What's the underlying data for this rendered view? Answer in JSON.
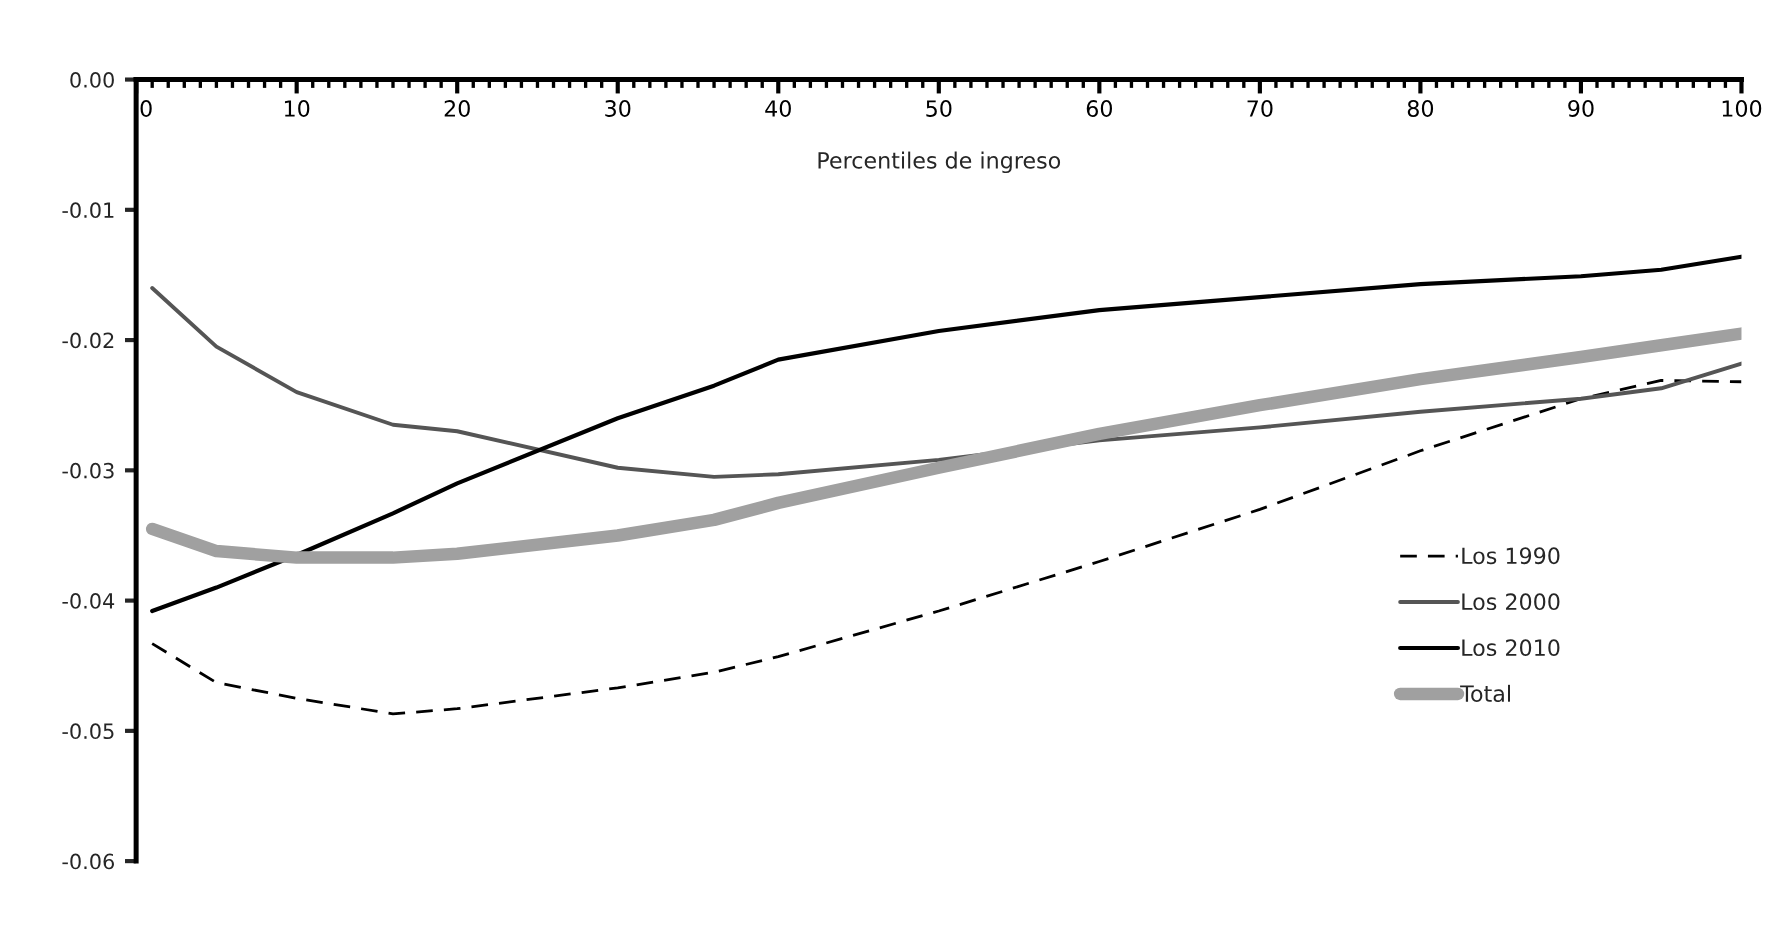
{
  "chart_data": {
    "type": "line",
    "xlabel": "Percentiles de ingreso",
    "xlim": [
      0,
      100
    ],
    "xticks": [
      0,
      10,
      20,
      30,
      40,
      50,
      60,
      70,
      80,
      90,
      100
    ],
    "ylim": [
      -0.06,
      0
    ],
    "yticks": [
      {
        "value": -0.06,
        "label": "-0.06"
      },
      {
        "value": -0.05,
        "label": "-0.05"
      },
      {
        "value": -0.04,
        "label": "-0.04"
      },
      {
        "value": -0.03,
        "label": "-0.03"
      },
      {
        "value": -0.02,
        "label": "-0.02"
      },
      {
        "value": -0.01,
        "label": "-0.01"
      },
      {
        "value": 0,
        "label": "0.00"
      }
    ],
    "x": [
      1,
      5,
      10,
      16,
      20,
      30,
      36,
      40,
      50,
      60,
      70,
      80,
      90,
      95,
      100
    ],
    "legend": "right",
    "grid": false,
    "marker": "none",
    "series": [
      {
        "name": "Los 1990",
        "color": "#000000",
        "line_style": "dashed",
        "values": [
          -0.0433,
          -0.0463,
          -0.0475,
          -0.0487,
          -0.0483,
          -0.0467,
          -0.0455,
          -0.0443,
          -0.0408,
          -0.037,
          -0.033,
          -0.0285,
          -0.0245,
          -0.0231,
          -0.0232
        ]
      },
      {
        "name": "Los 2000",
        "color": "#555555",
        "line_style": "solid",
        "values": [
          -0.016,
          -0.0205,
          -0.024,
          -0.0265,
          -0.027,
          -0.0298,
          -0.0305,
          -0.0303,
          -0.0292,
          -0.0277,
          -0.0267,
          -0.0255,
          -0.0245,
          -0.0237,
          -0.0218
        ]
      },
      {
        "name": "Los 2010",
        "color": "#000000",
        "line_style": "solid",
        "values": [
          -0.0408,
          -0.039,
          -0.0365,
          -0.0333,
          -0.031,
          -0.026,
          -0.0235,
          -0.0215,
          -0.0193,
          -0.0177,
          -0.0167,
          -0.0157,
          -0.0151,
          -0.0146,
          -0.0136
        ]
      },
      {
        "name": "Total",
        "color": "#a0a0a0",
        "line_style": "solid",
        "values": [
          -0.0345,
          -0.0362,
          -0.0367,
          -0.0367,
          -0.0364,
          -0.035,
          -0.0338,
          -0.0325,
          -0.0298,
          -0.0272,
          -0.025,
          -0.023,
          -0.0213,
          -0.0204,
          -0.0195
        ]
      }
    ]
  }
}
